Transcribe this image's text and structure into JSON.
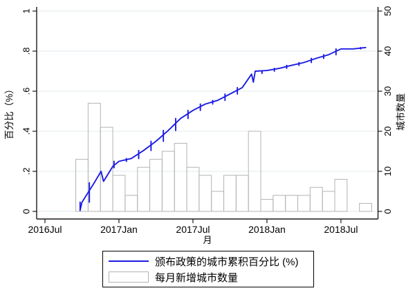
{
  "chart_data": {
    "type": "bar+line dual-axis (monthly housing-policy adoption)",
    "x_axis": {
      "label": "月",
      "tick_labels": [
        "2016Jul",
        "2017Jan",
        "2017Jul",
        "2018Jan",
        "2018Jul"
      ],
      "tick_month_index": [
        0,
        6,
        12,
        18,
        24
      ]
    },
    "left_axis": {
      "label": "百分比（%）",
      "tick_labels": [
        "0",
        ".2",
        ".4",
        ".6",
        ".8",
        "1"
      ],
      "tick_values": [
        0,
        0.2,
        0.4,
        0.6,
        0.8,
        1
      ],
      "range": [
        0,
        1
      ],
      "grid": true
    },
    "right_axis": {
      "label": "城市数量",
      "tick_labels": [
        "0",
        "10",
        "20",
        "30",
        "40",
        "50"
      ],
      "tick_values": [
        0,
        10,
        20,
        30,
        40,
        50
      ],
      "range": [
        0,
        50
      ]
    },
    "bars": {
      "name": "每月新增城市数量",
      "month_index": [
        3,
        4,
        5,
        6,
        7,
        8,
        9,
        10,
        11,
        12,
        13,
        14,
        15,
        16,
        17,
        18,
        19,
        20,
        21,
        22,
        23,
        24,
        25,
        26
      ],
      "month_names": [
        "2016m10",
        "2016m11",
        "2016m12",
        "2017m1",
        "2017m2",
        "2017m3",
        "2017m4",
        "2017m5",
        "2017m6",
        "2017m7",
        "2017m8",
        "2017m9",
        "2017m10",
        "2017m11",
        "2017m12",
        "2018m1",
        "2018m2",
        "2018m3",
        "2018m4",
        "2018m5",
        "2018m6",
        "2018m7",
        "2018m8",
        "2018m9"
      ],
      "values": [
        13,
        27,
        21,
        9,
        4,
        11,
        13,
        15,
        17,
        11,
        9,
        5,
        9,
        9,
        20,
        3,
        4,
        4,
        4,
        6,
        5,
        8,
        0,
        2
      ],
      "fill": "none",
      "border_color": "#b3b3b3"
    },
    "line": {
      "name": "颁布政策的城市累积百分比 (%)",
      "color": "#1b1be4",
      "month_index": [
        3,
        4,
        5,
        6,
        7,
        8,
        9,
        10,
        11,
        12,
        13,
        14,
        15,
        16,
        17,
        18,
        19,
        20,
        21,
        22,
        23,
        24,
        25,
        26
      ],
      "cumulative_pct": [
        0.046,
        0.143,
        0.218,
        0.25,
        0.264,
        0.304,
        0.35,
        0.404,
        0.464,
        0.504,
        0.536,
        0.554,
        0.586,
        0.618,
        0.689,
        0.7,
        0.714,
        0.729,
        0.743,
        0.764,
        0.782,
        0.811,
        0.811,
        0.818
      ],
      "draw_points": [
        [
          2.85,
          0.005
        ],
        [
          3,
          0.046
        ],
        [
          4,
          0.143
        ],
        [
          4.55,
          0.2
        ],
        [
          4.75,
          0.15
        ],
        [
          5.5,
          0.225
        ],
        [
          6,
          0.25
        ],
        [
          7,
          0.264
        ],
        [
          8,
          0.304
        ],
        [
          9,
          0.35
        ],
        [
          10,
          0.404
        ],
        [
          11,
          0.464
        ],
        [
          12,
          0.504
        ],
        [
          13,
          0.536
        ],
        [
          14,
          0.554
        ],
        [
          15,
          0.586
        ],
        [
          16,
          0.618
        ],
        [
          16.75,
          0.685
        ],
        [
          16.9,
          0.645
        ],
        [
          17.05,
          0.7
        ],
        [
          18,
          0.703
        ],
        [
          19,
          0.714
        ],
        [
          20,
          0.729
        ],
        [
          21,
          0.743
        ],
        [
          22,
          0.764
        ],
        [
          23,
          0.782
        ],
        [
          24,
          0.811
        ],
        [
          25,
          0.811
        ],
        [
          26,
          0.818
        ]
      ]
    },
    "colors": {
      "line": "#1b1be4",
      "bar_border": "#b3b3b3",
      "gridline": "#dfeaee",
      "axis": "#1a1a1a",
      "background": "#ffffff"
    },
    "legend": {
      "position": "bottom-center",
      "border": "#000000",
      "entries": [
        "颁布政策的城市累积百分比 (%)",
        "每月新增城市数量"
      ]
    }
  }
}
